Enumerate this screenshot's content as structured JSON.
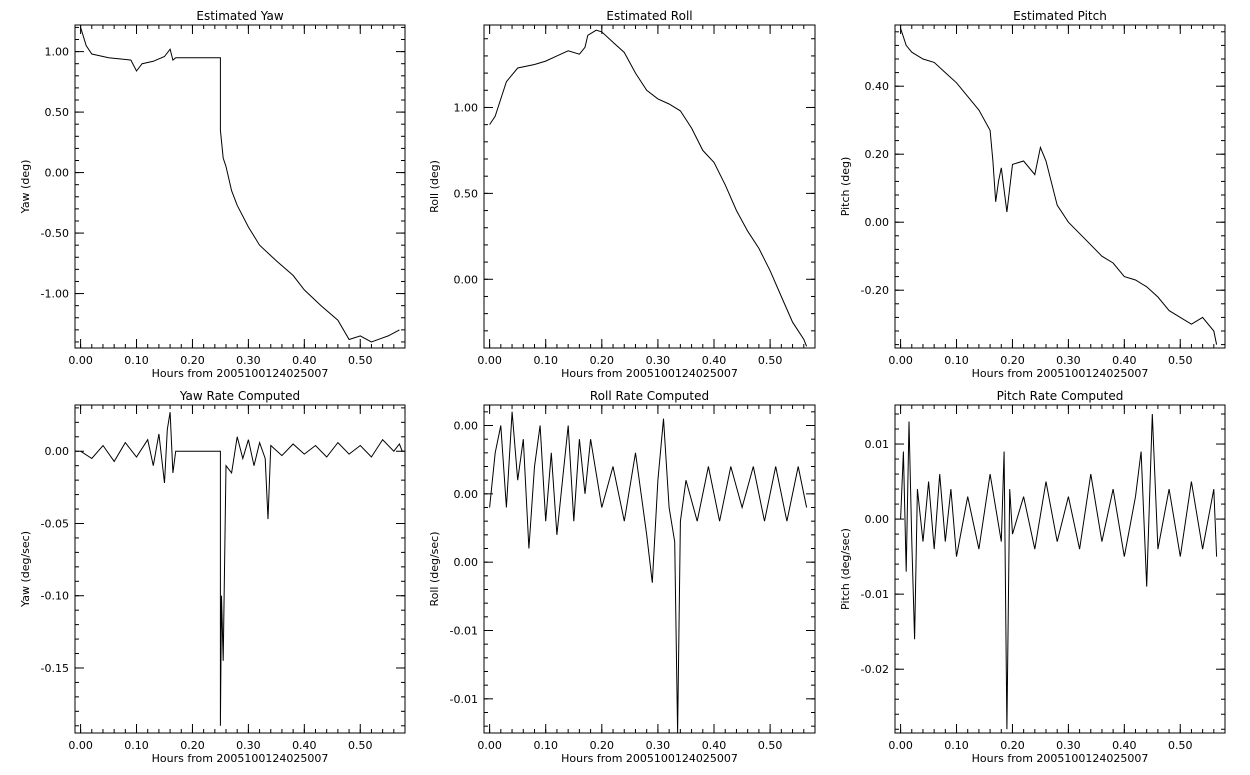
{
  "chart_data": [
    {
      "type": "line",
      "title": "Estimated Yaw",
      "xlabel": "Hours from 2005100124025007",
      "ylabel": "Yaw (deg)",
      "xlim": [
        -0.01,
        0.58
      ],
      "ylim": [
        -1.45,
        1.22
      ],
      "xticks": [
        0.0,
        0.1,
        0.2,
        0.3,
        0.4,
        0.5
      ],
      "xtick_labels": [
        "0.00",
        "0.10",
        "0.20",
        "0.30",
        "0.40",
        "0.50"
      ],
      "yticks": [
        1.0,
        0.5,
        0.0,
        -0.5,
        -1.0
      ],
      "ytick_labels": [
        "1.00",
        "0.50",
        "0.00",
        "-0.50",
        "-1.00"
      ],
      "series": [
        {
          "x": [
            0.0,
            0.01,
            0.02,
            0.03,
            0.05,
            0.07,
            0.09,
            0.1,
            0.11,
            0.13,
            0.15,
            0.16,
            0.165,
            0.17,
            0.25,
            0.25,
            0.255,
            0.26,
            0.27,
            0.28,
            0.3,
            0.32,
            0.35,
            0.38,
            0.4,
            0.43,
            0.46,
            0.48,
            0.5,
            0.52,
            0.55,
            0.57
          ],
          "y": [
            1.2,
            1.05,
            0.98,
            0.97,
            0.95,
            0.94,
            0.93,
            0.84,
            0.9,
            0.92,
            0.96,
            1.02,
            0.93,
            0.95,
            0.95,
            0.35,
            0.12,
            0.05,
            -0.15,
            -0.27,
            -0.45,
            -0.6,
            -0.73,
            -0.85,
            -0.97,
            -1.1,
            -1.22,
            -1.38,
            -1.35,
            -1.4,
            -1.35,
            -1.3
          ]
        }
      ]
    },
    {
      "type": "line",
      "title": "Estimated Roll",
      "xlabel": "Hours from 2005100124025007",
      "ylabel": "Roll (deg)",
      "xlim": [
        -0.01,
        0.58
      ],
      "ylim": [
        -0.4,
        1.48
      ],
      "xticks": [
        0.0,
        0.1,
        0.2,
        0.3,
        0.4,
        0.5
      ],
      "xtick_labels": [
        "0.00",
        "0.10",
        "0.20",
        "0.30",
        "0.40",
        "0.50"
      ],
      "yticks": [
        1.0,
        0.5,
        0.0
      ],
      "ytick_labels": [
        "1.00",
        "0.50",
        "0.00"
      ],
      "series": [
        {
          "x": [
            0.0,
            0.01,
            0.02,
            0.03,
            0.05,
            0.08,
            0.1,
            0.12,
            0.14,
            0.16,
            0.17,
            0.175,
            0.19,
            0.2,
            0.22,
            0.24,
            0.26,
            0.28,
            0.3,
            0.32,
            0.34,
            0.36,
            0.38,
            0.4,
            0.42,
            0.44,
            0.46,
            0.48,
            0.5,
            0.52,
            0.54,
            0.56,
            0.565
          ],
          "y": [
            0.9,
            0.95,
            1.05,
            1.15,
            1.23,
            1.25,
            1.27,
            1.3,
            1.33,
            1.31,
            1.35,
            1.42,
            1.45,
            1.44,
            1.38,
            1.32,
            1.2,
            1.1,
            1.05,
            1.02,
            0.98,
            0.88,
            0.75,
            0.68,
            0.55,
            0.4,
            0.28,
            0.18,
            0.05,
            -0.1,
            -0.25,
            -0.35,
            -0.39
          ]
        }
      ]
    },
    {
      "type": "line",
      "title": "Estimated Pitch",
      "xlabel": "Hours from 2005100124025007",
      "ylabel": "Pitch (deg)",
      "xlim": [
        -0.01,
        0.58
      ],
      "ylim": [
        -0.37,
        0.58
      ],
      "xticks": [
        0.0,
        0.1,
        0.2,
        0.3,
        0.4,
        0.5
      ],
      "xtick_labels": [
        "0.00",
        "0.10",
        "0.20",
        "0.30",
        "0.40",
        "0.50"
      ],
      "yticks": [
        0.4,
        0.2,
        0.0,
        -0.2
      ],
      "ytick_labels": [
        "0.40",
        "0.20",
        "0.00",
        "-0.20"
      ],
      "series": [
        {
          "x": [
            0.0,
            0.01,
            0.02,
            0.04,
            0.06,
            0.08,
            0.1,
            0.12,
            0.14,
            0.16,
            0.165,
            0.17,
            0.175,
            0.18,
            0.19,
            0.2,
            0.22,
            0.24,
            0.25,
            0.26,
            0.28,
            0.3,
            0.33,
            0.36,
            0.38,
            0.4,
            0.42,
            0.44,
            0.46,
            0.48,
            0.5,
            0.52,
            0.54,
            0.56,
            0.565
          ],
          "y": [
            0.57,
            0.52,
            0.5,
            0.48,
            0.47,
            0.44,
            0.41,
            0.37,
            0.33,
            0.27,
            0.18,
            0.06,
            0.12,
            0.16,
            0.03,
            0.17,
            0.18,
            0.14,
            0.22,
            0.18,
            0.05,
            0.0,
            -0.05,
            -0.1,
            -0.12,
            -0.16,
            -0.17,
            -0.19,
            -0.22,
            -0.26,
            -0.28,
            -0.3,
            -0.28,
            -0.32,
            -0.36
          ]
        }
      ]
    },
    {
      "type": "line",
      "title": "Yaw Rate Computed",
      "xlabel": "Hours from 2005100124025007",
      "ylabel": "Yaw (deg/sec)",
      "xlim": [
        -0.01,
        0.58
      ],
      "ylim": [
        -0.195,
        0.032
      ],
      "xticks": [
        0.0,
        0.1,
        0.2,
        0.3,
        0.4,
        0.5
      ],
      "xtick_labels": [
        "0.00",
        "0.10",
        "0.20",
        "0.30",
        "0.40",
        "0.50"
      ],
      "yticks": [
        0.0,
        -0.05,
        -0.1,
        -0.15
      ],
      "ytick_labels": [
        "0.00",
        "-0.05",
        "-0.10",
        "-0.15"
      ],
      "series": [
        {
          "x": [
            0.0,
            0.02,
            0.04,
            0.06,
            0.08,
            0.1,
            0.12,
            0.13,
            0.14,
            0.15,
            0.155,
            0.16,
            0.165,
            0.17,
            0.25,
            0.25,
            0.252,
            0.255,
            0.26,
            0.27,
            0.28,
            0.29,
            0.3,
            0.31,
            0.32,
            0.33,
            0.335,
            0.34,
            0.36,
            0.38,
            0.4,
            0.42,
            0.44,
            0.46,
            0.48,
            0.5,
            0.52,
            0.54,
            0.56,
            0.57,
            0.575
          ],
          "y": [
            0.0,
            -0.005,
            0.004,
            -0.007,
            0.006,
            -0.004,
            0.008,
            -0.01,
            0.012,
            -0.022,
            0.015,
            0.027,
            -0.015,
            0.0,
            0.0,
            -0.19,
            -0.1,
            -0.145,
            -0.01,
            -0.015,
            0.01,
            -0.005,
            0.008,
            -0.01,
            0.006,
            -0.005,
            -0.047,
            0.004,
            -0.003,
            0.005,
            -0.002,
            0.004,
            -0.004,
            0.006,
            -0.002,
            0.004,
            -0.004,
            0.008,
            0.0,
            0.005,
            0.0
          ]
        }
      ]
    },
    {
      "type": "line",
      "title": "Roll Rate Computed",
      "xlabel": "Hours from 2005100124025007",
      "ylabel": "Roll (deg/sec)",
      "xlim": [
        -0.01,
        0.58
      ],
      "ylim": [
        -0.0175,
        0.0065
      ],
      "xticks": [
        0.0,
        0.1,
        0.2,
        0.3,
        0.4,
        0.5
      ],
      "xtick_labels": [
        "0.00",
        "0.10",
        "0.20",
        "0.30",
        "0.40",
        "0.50"
      ],
      "yticks": [
        0.005,
        0.0,
        -0.005,
        -0.01,
        -0.015
      ],
      "ytick_labels": [
        "0.00",
        "0.00",
        "0.00",
        "-0.01",
        "-0.01"
      ],
      "series": [
        {
          "x": [
            0.0,
            0.01,
            0.02,
            0.03,
            0.04,
            0.05,
            0.06,
            0.07,
            0.08,
            0.09,
            0.1,
            0.11,
            0.12,
            0.13,
            0.14,
            0.15,
            0.16,
            0.17,
            0.18,
            0.2,
            0.22,
            0.24,
            0.26,
            0.28,
            0.29,
            0.3,
            0.31,
            0.32,
            0.33,
            0.335,
            0.34,
            0.35,
            0.37,
            0.39,
            0.41,
            0.43,
            0.45,
            0.47,
            0.49,
            0.51,
            0.53,
            0.55,
            0.565
          ],
          "y": [
            -0.001,
            0.003,
            0.005,
            -0.001,
            0.006,
            0.001,
            0.004,
            -0.004,
            0.002,
            0.005,
            -0.002,
            0.003,
            -0.003,
            0.001,
            0.005,
            -0.002,
            0.004,
            0.0,
            0.004,
            -0.001,
            0.002,
            -0.002,
            0.003,
            -0.003,
            -0.0065,
            0.001,
            0.0055,
            -0.001,
            -0.0035,
            -0.0175,
            -0.002,
            0.001,
            -0.002,
            0.002,
            -0.002,
            0.002,
            -0.001,
            0.002,
            -0.002,
            0.002,
            -0.002,
            0.002,
            -0.001
          ]
        }
      ]
    },
    {
      "type": "line",
      "title": "Pitch Rate Computed",
      "xlabel": "Hours from 2005100124025007",
      "ylabel": "Pitch (deg/sec)",
      "xlim": [
        -0.01,
        0.58
      ],
      "ylim": [
        -0.0285,
        0.0152
      ],
      "xticks": [
        0.0,
        0.1,
        0.2,
        0.3,
        0.4,
        0.5
      ],
      "xtick_labels": [
        "0.00",
        "0.10",
        "0.20",
        "0.30",
        "0.40",
        "0.50"
      ],
      "yticks": [
        0.01,
        0.0,
        -0.01,
        -0.02
      ],
      "ytick_labels": [
        "0.01",
        "0.00",
        "-0.01",
        "-0.02"
      ],
      "series": [
        {
          "x": [
            0.0,
            0.005,
            0.01,
            0.015,
            0.02,
            0.025,
            0.03,
            0.04,
            0.05,
            0.06,
            0.07,
            0.08,
            0.09,
            0.1,
            0.12,
            0.14,
            0.16,
            0.18,
            0.185,
            0.19,
            0.195,
            0.2,
            0.22,
            0.24,
            0.26,
            0.28,
            0.3,
            0.32,
            0.34,
            0.36,
            0.38,
            0.4,
            0.42,
            0.43,
            0.44,
            0.45,
            0.46,
            0.48,
            0.5,
            0.52,
            0.54,
            0.56,
            0.565
          ],
          "y": [
            0.0,
            0.009,
            -0.007,
            0.013,
            -0.003,
            -0.016,
            0.004,
            -0.003,
            0.005,
            -0.004,
            0.006,
            -0.003,
            0.004,
            -0.005,
            0.003,
            -0.004,
            0.006,
            -0.003,
            0.009,
            -0.028,
            0.004,
            -0.002,
            0.003,
            -0.004,
            0.005,
            -0.003,
            0.003,
            -0.004,
            0.006,
            -0.003,
            0.004,
            -0.005,
            0.003,
            0.009,
            -0.009,
            0.014,
            -0.004,
            0.004,
            -0.005,
            0.005,
            -0.004,
            0.004,
            -0.005
          ]
        }
      ]
    }
  ]
}
